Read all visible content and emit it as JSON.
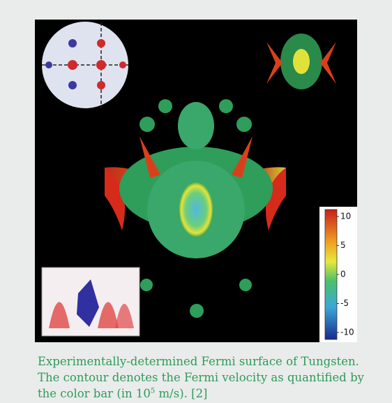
{
  "caption": {
    "before": "Experimentally-determined Fermi surface of Tungsten. The contour denotes the Fermi velocity as quantified by the color bar (in 10",
    "sup": "5",
    "after": " m/s). [2]"
  },
  "colorbar": {
    "ticks": [
      10,
      5,
      0,
      -5,
      -10
    ]
  }
}
